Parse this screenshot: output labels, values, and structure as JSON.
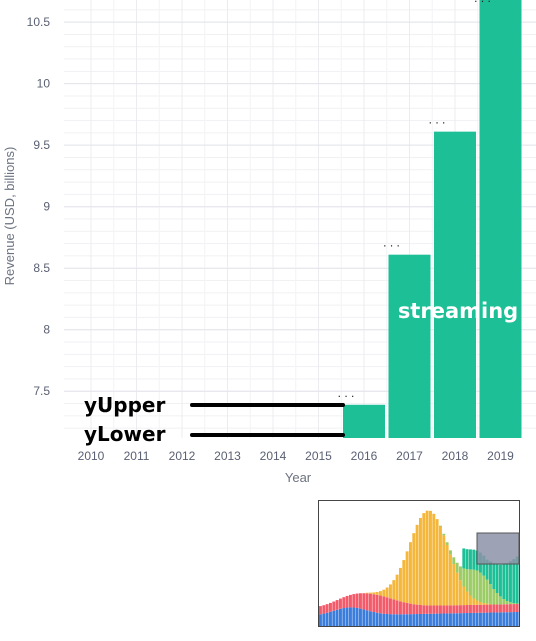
{
  "chart_data": {
    "type": "bar",
    "categories": [
      "2010",
      "2011",
      "2012",
      "2013",
      "2014",
      "2015",
      "2016",
      "2017",
      "2018",
      "2019"
    ],
    "values": [
      null,
      null,
      null,
      null,
      null,
      null,
      7.39,
      8.61,
      9.61,
      10.75
    ],
    "xlabel": "Year",
    "ylabel": "Revenue (USD, billions)",
    "ylim": [
      7.12,
      10.68
    ],
    "yticks": [
      "7.5",
      "8",
      "8.5",
      "9",
      "9.5",
      "10",
      "10.5"
    ],
    "bar_color": "#1dbf96",
    "grid": true,
    "annotations": {
      "series_label": "streaming",
      "y_upper": "yUpper",
      "y_lower": "yLower",
      "ellipsis": ". . ."
    },
    "inset": {
      "type": "stacked-bar",
      "colors": [
        "#3b7ddd",
        "#f45b6a",
        "#f5b73b",
        "#9ccc65",
        "#1dbf96"
      ]
    }
  }
}
